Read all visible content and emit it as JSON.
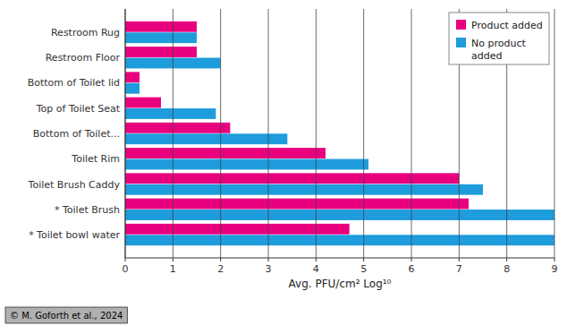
{
  "chart_data": {
    "type": "bar",
    "orientation": "horizontal",
    "categories": [
      "* Toilet bowl water",
      "* Toilet Brush",
      "Toilet Brush Caddy",
      "Toilet Rim",
      "Bottom of Toilet...",
      "Top of Toilet Seat",
      "Bottom of Toilet lid",
      "Restroom Floor",
      "Restroom Rug"
    ],
    "series": [
      {
        "name": "Product added",
        "color": "#e8007f",
        "values": [
          4.7,
          7.2,
          7.0,
          4.2,
          2.2,
          0.75,
          0.3,
          1.5,
          1.5
        ]
      },
      {
        "name": "No product\nadded",
        "color": "#1e9cdc",
        "values": [
          9.0,
          9.0,
          7.5,
          5.1,
          3.4,
          1.9,
          0.3,
          2.0,
          1.5
        ]
      }
    ],
    "xlabel": "Avg. PFU/cm²  Log¹⁰",
    "xlim": [
      0,
      9
    ],
    "xticks": [
      0,
      1,
      2,
      3,
      4,
      5,
      6,
      7,
      8,
      9
    ],
    "grid": true,
    "legend": "upper right",
    "annotations": [
      "© M. Goforth et al., 2024"
    ]
  }
}
